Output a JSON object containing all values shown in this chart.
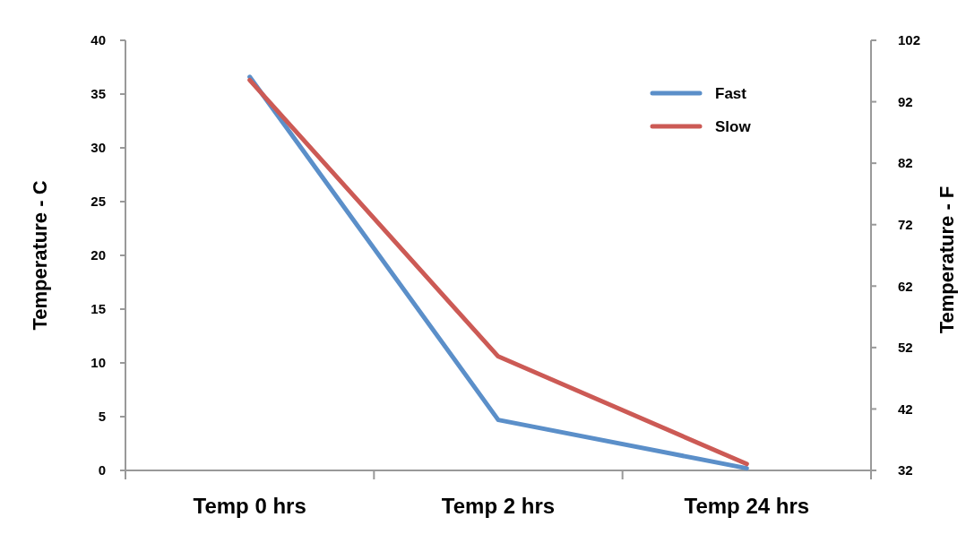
{
  "chart_data": {
    "type": "line",
    "categories": [
      "Temp 0 hrs",
      "Temp 2 hrs",
      "Temp 24 hrs"
    ],
    "series": [
      {
        "name": "Fast",
        "color": "#5b8fc9",
        "values": [
          36.6,
          4.7,
          0.2
        ]
      },
      {
        "name": "Slow",
        "color": "#cc5a55",
        "values": [
          36.3,
          10.6,
          0.6
        ]
      }
    ],
    "ylabel": "Temperature - C",
    "y2label": "Temperature - F",
    "ylim": [
      0,
      40
    ],
    "yticks": [
      0,
      5,
      10,
      15,
      20,
      25,
      30,
      35,
      40
    ],
    "y2lim": [
      32,
      102
    ],
    "y2ticks": [
      32,
      42,
      52,
      62,
      72,
      82,
      92,
      102
    ],
    "grid": false,
    "legend": "top right",
    "marker": "none",
    "line_style": "solid"
  }
}
